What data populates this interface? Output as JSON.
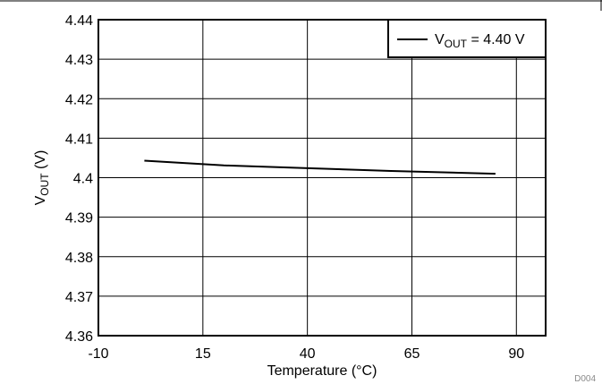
{
  "chart_data": {
    "type": "line",
    "title": "",
    "xlabel": "Temperature (°C)",
    "ylabel": "V",
    "ylabel_sub": "OUT",
    "ylabel_suffix": " (V)",
    "xlim": [
      -10,
      97
    ],
    "ylim": [
      4.36,
      4.44
    ],
    "x_ticks": [
      -10,
      15,
      40,
      65,
      90
    ],
    "x_tick_labels": [
      "-10",
      "15",
      "40",
      "65",
      "90"
    ],
    "y_ticks": [
      4.36,
      4.37,
      4.38,
      4.39,
      4.4,
      4.41,
      4.42,
      4.43,
      4.44
    ],
    "y_tick_labels": [
      "4.36",
      "4.37",
      "4.38",
      "4.39",
      "4.4",
      "4.41",
      "4.42",
      "4.43",
      "4.44"
    ],
    "grid": true,
    "legend_position": "top-right",
    "series": [
      {
        "name": "V_OUT = 4.40 V",
        "legend_prefix": "V",
        "legend_sub": "OUT",
        "legend_suffix": " = 4.40 V",
        "color": "#000000",
        "x": [
          1,
          20,
          40,
          60,
          85
        ],
        "y": [
          4.4043,
          4.4031,
          4.4024,
          4.4017,
          4.401
        ]
      }
    ],
    "figure_id": "D004"
  }
}
